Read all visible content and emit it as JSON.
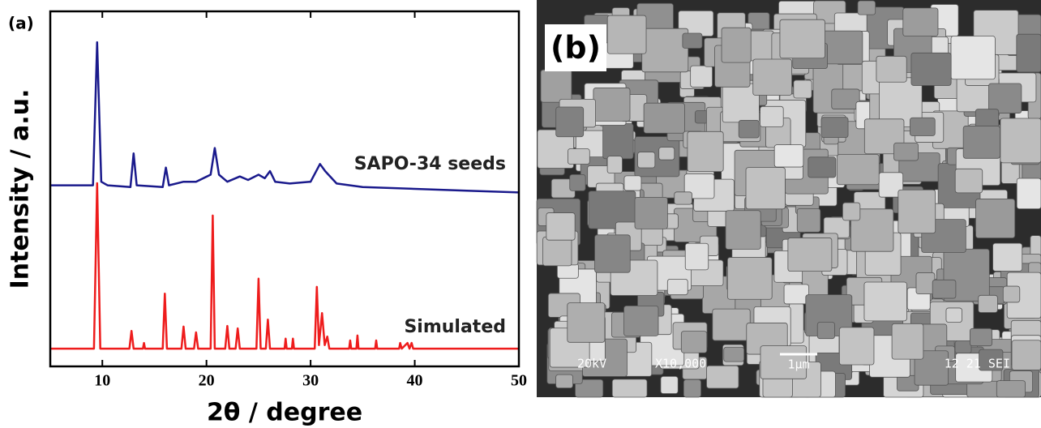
{
  "chart_data": {
    "type": "line",
    "panel_label": "(a)",
    "xlabel": "2θ / degree",
    "ylabel": "Intensity / a.u.",
    "xlim": [
      5,
      50
    ],
    "ylim": [
      0,
      100
    ],
    "xticks": [
      10,
      20,
      30,
      40,
      50
    ],
    "series": [
      {
        "name": "SAPO-34 seeds",
        "color": "#1a1a8c",
        "x": [
          5,
          9.1,
          9.5,
          9.9,
          10.5,
          12.7,
          13.0,
          13.3,
          15.8,
          16.1,
          16.4,
          17.8,
          19,
          20.4,
          20.8,
          21.2,
          22,
          23.2,
          24,
          25,
          25.6,
          26.1,
          26.6,
          28,
          30,
          30.9,
          31.4,
          32.5,
          35,
          40,
          45,
          50
        ],
        "values": [
          51,
          51,
          91.3,
          52,
          51,
          50.5,
          60,
          51,
          50.5,
          56,
          51,
          52,
          52,
          54,
          61.5,
          54,
          52,
          53.5,
          52.5,
          54,
          53,
          55,
          52,
          51.5,
          52,
          57,
          55,
          51.5,
          50.5,
          50,
          49.5,
          49
        ]
      },
      {
        "name": "Simulated",
        "color": "#ee1c1c",
        "x": [
          5,
          9.2,
          9.5,
          9.8,
          12.6,
          12.8,
          13.0,
          13.9,
          14,
          14.1,
          15.8,
          16,
          16.2,
          17.6,
          17.8,
          18,
          18.8,
          19,
          19.2,
          20.4,
          20.6,
          20.8,
          21.8,
          22,
          22.2,
          22.8,
          23,
          23.2,
          24.8,
          25,
          25.2,
          25.7,
          25.9,
          26.1,
          27.5,
          27.6,
          27.7,
          28.2,
          28.3,
          28.4,
          30.4,
          30.6,
          30.8,
          31.1,
          31.35,
          31.6,
          31.8,
          33.7,
          33.8,
          33.9,
          34.4,
          34.5,
          34.6,
          36.2,
          36.3,
          36.4,
          38.5,
          38.6,
          38.75,
          39.3,
          39.5,
          39.7,
          39.85,
          50
        ],
        "values": [
          5,
          5,
          51.6,
          5,
          5,
          10,
          5,
          5,
          6.6,
          5,
          5,
          20.5,
          5,
          5,
          11.2,
          5,
          5,
          9.6,
          5,
          5,
          42.5,
          5,
          5,
          11.4,
          5,
          5,
          10.7,
          5,
          5,
          24.7,
          5,
          5,
          13.2,
          5,
          5,
          7.8,
          5,
          5,
          7.8,
          5,
          5,
          22.4,
          6,
          15,
          6,
          8.4,
          5,
          5,
          7.3,
          5,
          5,
          8.7,
          5,
          5,
          7.3,
          5,
          5,
          6.6,
          5,
          6.6,
          5,
          6.6,
          5,
          5
        ]
      }
    ]
  },
  "sem_image": {
    "label": "(b)",
    "voltage": "20kV",
    "magnification": "X10,000",
    "scale": "1μm",
    "code": "12 21 SEI"
  }
}
